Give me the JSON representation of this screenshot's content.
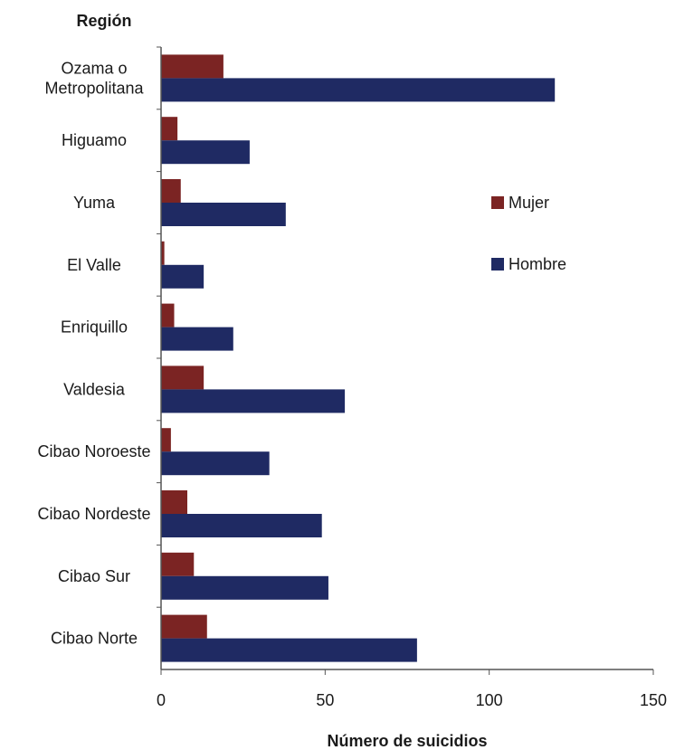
{
  "chart_data": {
    "type": "bar",
    "orientation": "horizontal",
    "ylabel": "Región",
    "xlabel": "Número de suicidios",
    "categories": [
      [
        "Ozama o",
        "Metropolitana"
      ],
      [
        "Higuamo"
      ],
      [
        "Yuma"
      ],
      [
        "El Valle"
      ],
      [
        "Enriquillo"
      ],
      [
        "Valdesia"
      ],
      [
        "Cibao Noroeste"
      ],
      [
        "Cibao Nordeste"
      ],
      [
        "Cibao Sur"
      ],
      [
        "Cibao Norte"
      ]
    ],
    "series": [
      {
        "name": "Mujer",
        "color": "#7b2423",
        "values": [
          19,
          5,
          6,
          1,
          4,
          13,
          3,
          8,
          10,
          14
        ]
      },
      {
        "name": "Hombre",
        "color": "#1f2a63",
        "values": [
          120,
          27,
          38,
          13,
          22,
          56,
          33,
          49,
          51,
          78
        ]
      }
    ],
    "xlim": [
      0,
      150
    ],
    "xticks": [
      0,
      50,
      100,
      150
    ],
    "grid": false,
    "legend_position": "right"
  }
}
